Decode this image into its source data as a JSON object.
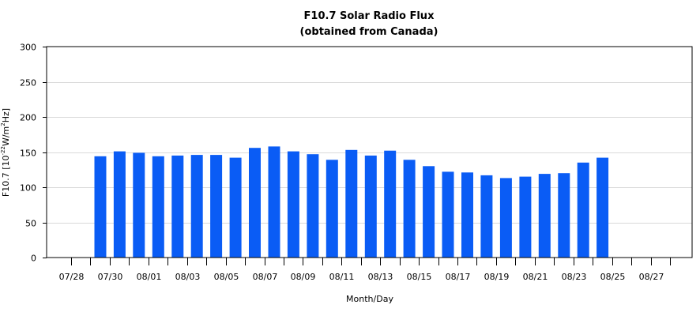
{
  "chart_data": {
    "type": "bar",
    "title": "F10.7 Solar Radio Flux",
    "subtitle": "(obtained from Canada)",
    "xlabel": "Month/Day",
    "ylabel": {
      "prefix": "F10.7 [10",
      "exp1": "-22",
      "middle": "W/m",
      "exp2": "2",
      "suffix": "Hz]"
    },
    "ylim": [
      0,
      300
    ],
    "yticks": [
      "0",
      "50",
      "100",
      "150",
      "200",
      "250",
      "300"
    ],
    "grid": true,
    "bar_color": "#0a5cf5",
    "categories": [
      "07/28",
      "07/29",
      "07/30",
      "07/31",
      "08/01",
      "08/02",
      "08/03",
      "08/04",
      "08/05",
      "08/06",
      "08/07",
      "08/08",
      "08/09",
      "08/10",
      "08/11",
      "08/12",
      "08/13",
      "08/14",
      "08/15",
      "08/16",
      "08/17",
      "08/18",
      "08/19",
      "08/20",
      "08/21",
      "08/22",
      "08/23",
      "08/24",
      "08/25",
      "08/26",
      "08/27",
      "08/28"
    ],
    "xtick_labels": [
      "07/28",
      "07/30",
      "08/01",
      "08/03",
      "08/05",
      "08/07",
      "08/09",
      "08/11",
      "08/13",
      "08/15",
      "08/17",
      "08/19",
      "08/21",
      "08/23",
      "08/25",
      "08/27"
    ],
    "values": [
      null,
      144,
      151,
      149,
      144,
      145,
      146,
      146,
      142,
      156,
      158,
      151,
      147,
      139,
      153,
      145,
      152,
      139,
      130,
      122,
      121,
      117,
      113,
      115,
      119,
      120,
      135,
      142,
      null,
      null,
      null,
      null
    ]
  }
}
